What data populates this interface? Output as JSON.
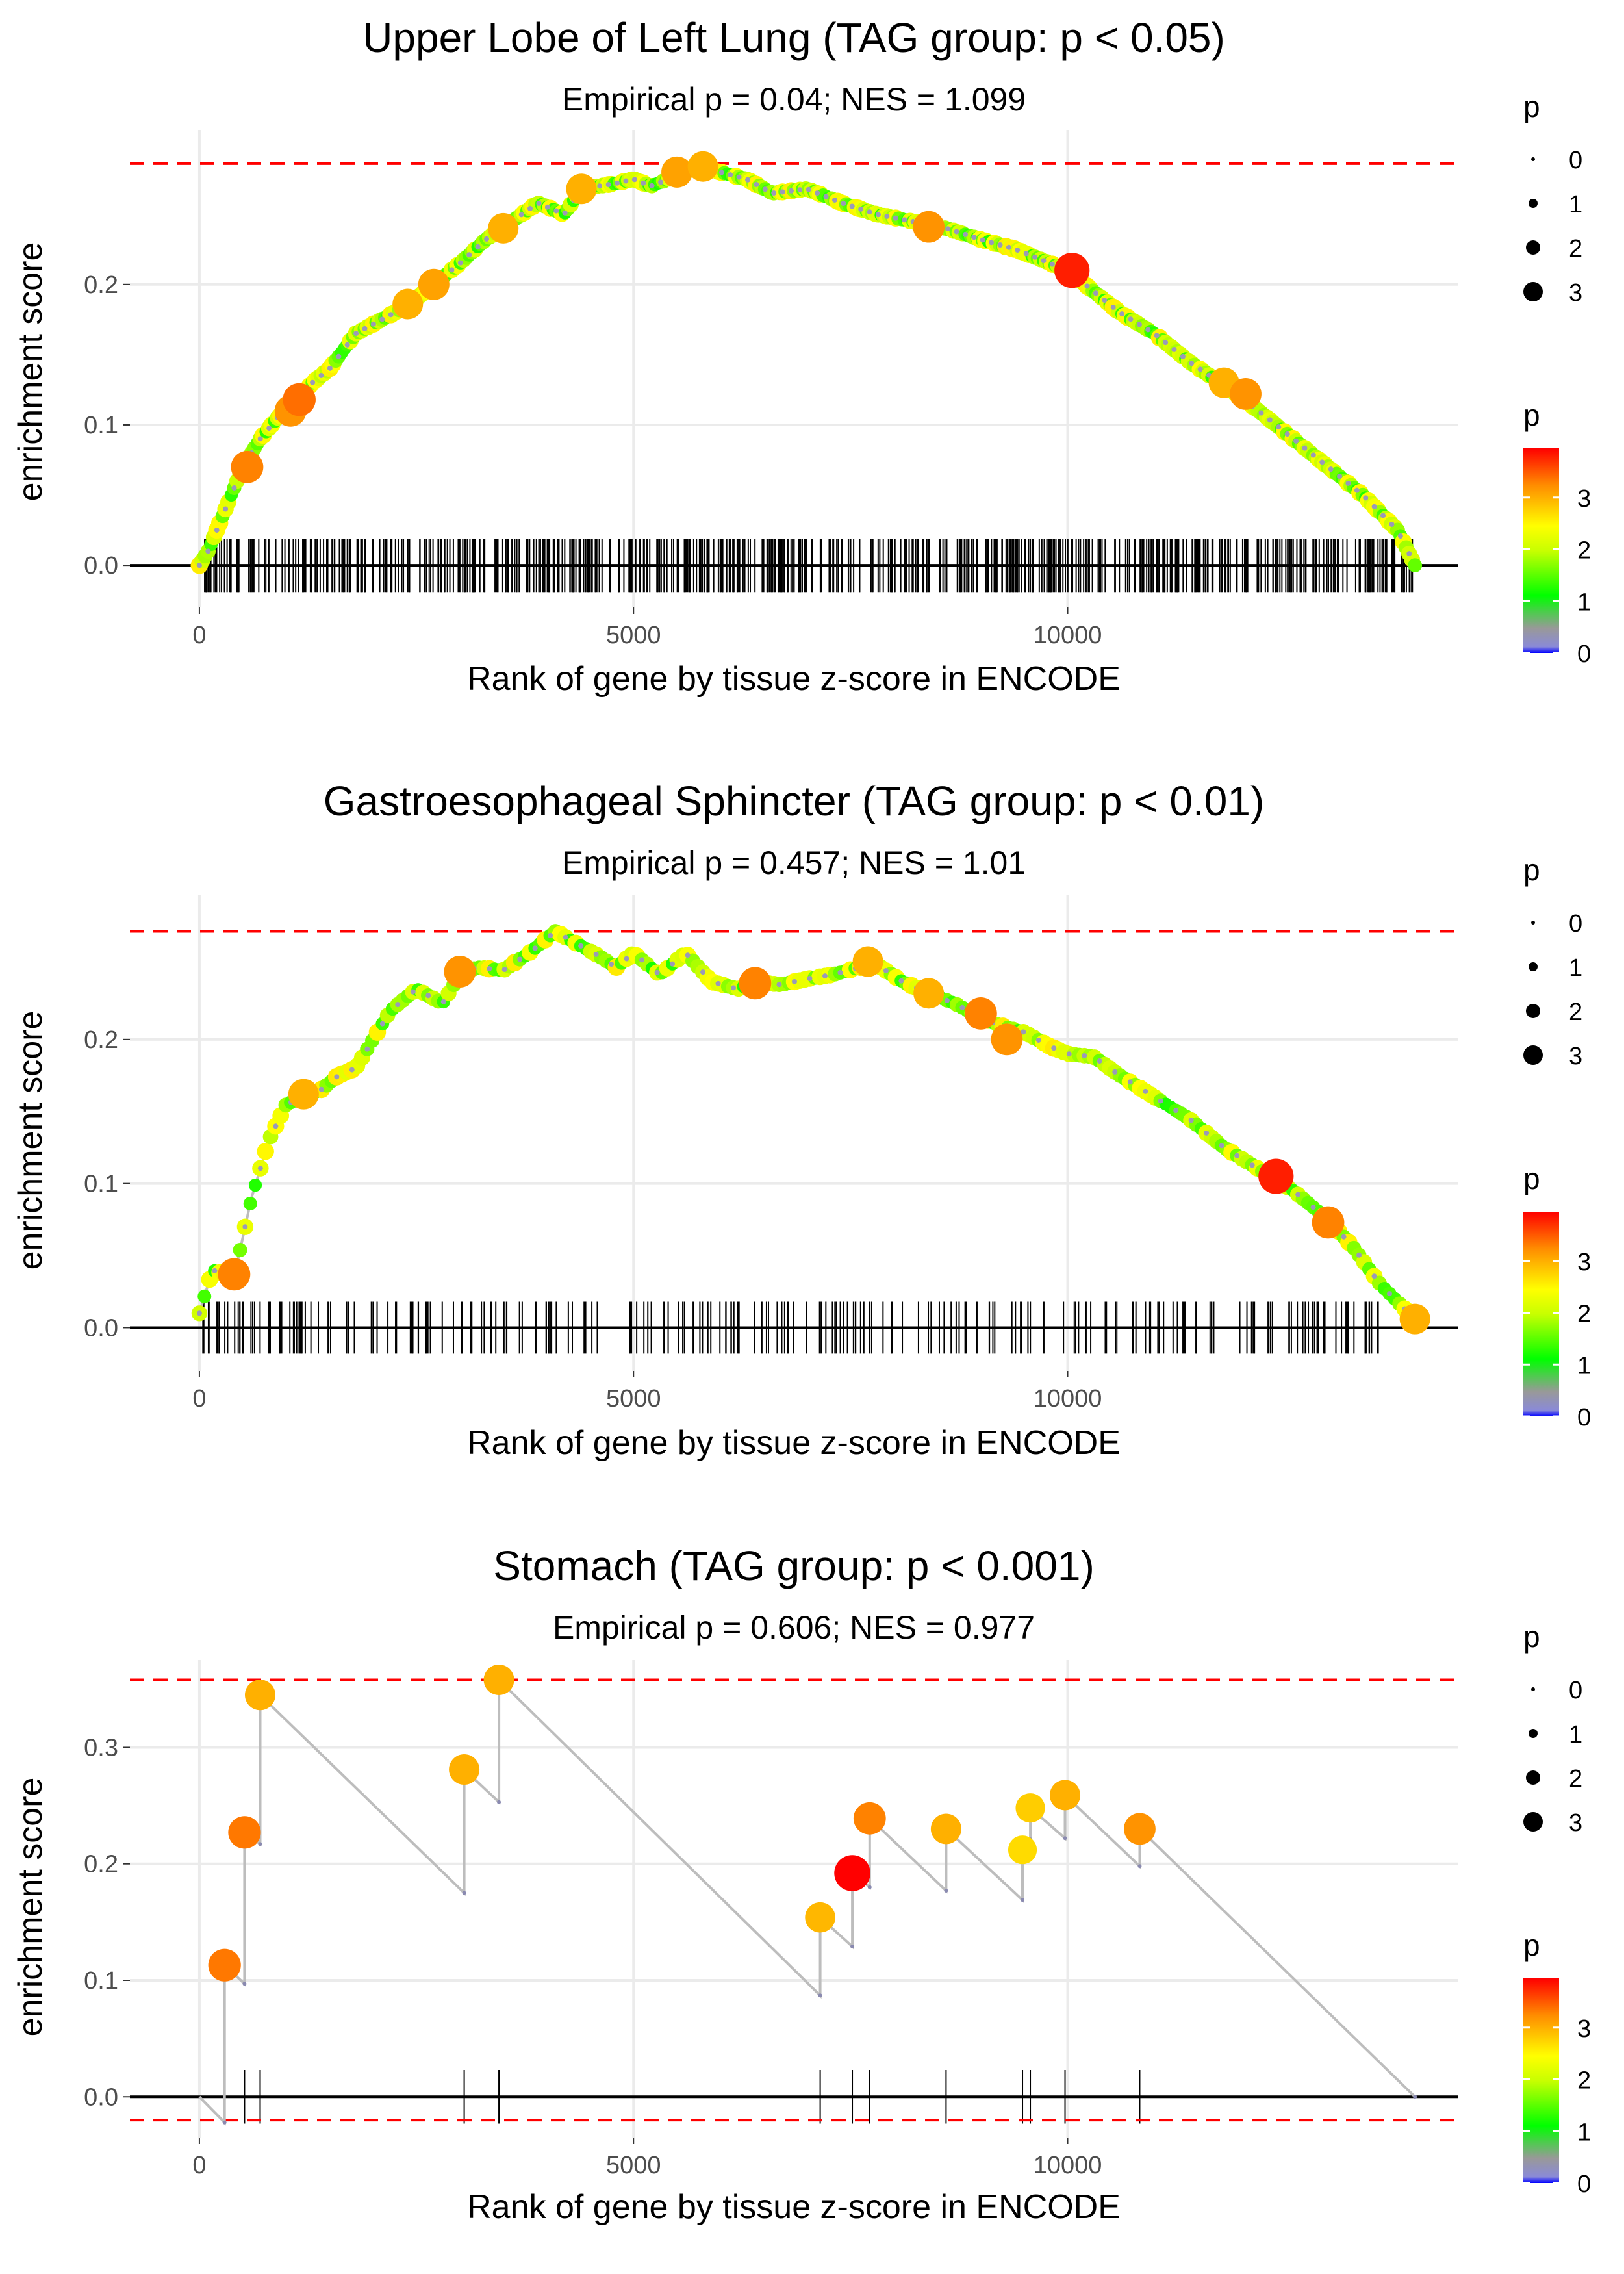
{
  "chart_data": [
    {
      "type": "line",
      "title": "Upper Lobe of Left Lung (TAG group: p < 0.05)",
      "subtitle": "Empirical p = 0.04; NES = 1.099",
      "xlabel": "Rank of gene by tissue z-score in ENCODE",
      "ylabel": "enrichment score",
      "xlim": [
        -800,
        14500
      ],
      "ylim": [
        -0.03,
        0.31
      ],
      "x_ticks": [
        0,
        5000,
        10000
      ],
      "x_tick_labels": [
        "0",
        "5000",
        "10000"
      ],
      "y_ticks": [
        0,
        0.1,
        0.2
      ],
      "y_tick_labels": [
        "0.0",
        "0.1",
        "0.2"
      ],
      "max_es_line": 0.286,
      "min_es_line": null,
      "hit_ticks_y_top": 0.019,
      "n_hits": 620,
      "curve": {
        "x": [
          0,
          100,
          300,
          500,
          700,
          900,
          1100,
          1300,
          1500,
          1800,
          2100,
          2400,
          2700,
          3000,
          3300,
          3600,
          3900,
          4200,
          4400,
          4600,
          4800,
          5000,
          5200,
          5400,
          5600,
          5800,
          6000,
          6300,
          6600,
          7000,
          7400,
          7800,
          8200,
          8600,
          9000,
          9400,
          9800,
          10000,
          10300,
          10600,
          11000,
          11400,
          11800,
          12200,
          12600,
          13000,
          13400,
          13800,
          14000
        ],
        "y": [
          0.0,
          0.01,
          0.04,
          0.07,
          0.09,
          0.105,
          0.115,
          0.13,
          0.14,
          0.165,
          0.175,
          0.185,
          0.2,
          0.215,
          0.232,
          0.245,
          0.258,
          0.25,
          0.268,
          0.27,
          0.272,
          0.275,
          0.27,
          0.275,
          0.282,
          0.282,
          0.28,
          0.275,
          0.265,
          0.268,
          0.258,
          0.25,
          0.245,
          0.24,
          0.232,
          0.225,
          0.215,
          0.21,
          0.195,
          0.18,
          0.165,
          0.145,
          0.128,
          0.11,
          0.09,
          0.07,
          0.05,
          0.025,
          0.0
        ]
      },
      "highlight_points": {
        "x": [
          550,
          1050,
          1150,
          2400,
          2700,
          3500,
          4400,
          5500,
          5800,
          8400,
          10050,
          11800,
          12050
        ],
        "y": [
          0.07,
          0.11,
          0.118,
          0.186,
          0.2,
          0.24,
          0.268,
          0.28,
          0.284,
          0.241,
          0.21,
          0.13,
          0.122
        ],
        "p": [
          3.3,
          3.2,
          3.4,
          3.0,
          3.1,
          3.0,
          3.0,
          3.1,
          3.0,
          3.2,
          3.8,
          3.0,
          3.2
        ]
      },
      "size_legend": {
        "title": "p",
        "labels": [
          "0",
          "1",
          "2",
          "3"
        ]
      },
      "color_legend": {
        "title": "p",
        "labels": [
          "0",
          "1",
          "2",
          "3"
        ],
        "max": 3.95
      }
    },
    {
      "type": "line",
      "title": "Gastroesophageal Sphincter (TAG group: p < 0.01)",
      "subtitle": "Empirical p = 0.457; NES = 1.01",
      "xlabel": "Rank of gene by tissue z-score in ENCODE",
      "ylabel": "enrichment score",
      "xlim": [
        -800,
        14500
      ],
      "ylim": [
        -0.03,
        0.3
      ],
      "x_ticks": [
        0,
        5000,
        10000
      ],
      "x_tick_labels": [
        "0",
        "5000",
        "10000"
      ],
      "y_ticks": [
        0,
        0.1,
        0.2
      ],
      "y_tick_labels": [
        "0.0",
        "0.1",
        "0.2"
      ],
      "max_es_line": 0.275,
      "min_es_line": null,
      "hit_ticks_y_top": 0.018,
      "n_hits": 240,
      "curve": {
        "x": [
          0,
          150,
          400,
          600,
          800,
          1000,
          1200,
          1400,
          1600,
          1800,
          2000,
          2200,
          2500,
          2800,
          3000,
          3200,
          3500,
          3800,
          4100,
          4300,
          4600,
          4800,
          5000,
          5300,
          5600,
          5900,
          6200,
          6400,
          6700,
          7000,
          7300,
          7600,
          7800,
          8100,
          8400,
          8700,
          9000,
          9200,
          9500,
          9800,
          10000,
          10300,
          10600,
          11000,
          11400,
          11800,
          12200,
          12600,
          13000,
          13300,
          13600,
          14000
        ],
        "y": [
          0.01,
          0.04,
          0.035,
          0.09,
          0.13,
          0.155,
          0.16,
          0.165,
          0.175,
          0.18,
          0.2,
          0.22,
          0.235,
          0.225,
          0.245,
          0.25,
          0.248,
          0.26,
          0.275,
          0.268,
          0.258,
          0.25,
          0.26,
          0.245,
          0.26,
          0.24,
          0.235,
          0.24,
          0.238,
          0.242,
          0.245,
          0.25,
          0.252,
          0.24,
          0.232,
          0.225,
          0.215,
          0.21,
          0.205,
          0.195,
          0.19,
          0.188,
          0.175,
          0.16,
          0.145,
          0.125,
          0.11,
          0.095,
          0.075,
          0.055,
          0.03,
          0.006
        ]
      },
      "highlight_points": {
        "x": [
          400,
          1200,
          3000,
          6400,
          7700,
          8400,
          9000,
          9300,
          12400,
          13000,
          14000
        ],
        "y": [
          0.037,
          0.162,
          0.247,
          0.239,
          0.254,
          0.232,
          0.218,
          0.2,
          0.105,
          0.073,
          0.006
        ],
        "p": [
          3.3,
          3.0,
          3.2,
          3.3,
          3.0,
          3.0,
          3.3,
          3.2,
          3.8,
          3.3,
          3.0
        ]
      },
      "size_legend": {
        "title": "p",
        "labels": [
          "0",
          "1",
          "2",
          "3"
        ]
      },
      "color_legend": {
        "title": "p",
        "labels": [
          "0",
          "1",
          "2",
          "3"
        ],
        "max": 3.95
      }
    },
    {
      "type": "line",
      "title": "Stomach (TAG group: p < 0.001)",
      "subtitle": "Empirical p = 0.606; NES = 0.977",
      "xlabel": "Rank of gene by tissue z-score in ENCODE",
      "ylabel": "enrichment score",
      "xlim": [
        -800,
        14500
      ],
      "ylim": [
        -0.035,
        0.375
      ],
      "x_ticks": [
        0,
        5000,
        10000
      ],
      "x_tick_labels": [
        "0",
        "5000",
        "10000"
      ],
      "y_ticks": [
        0,
        0.1,
        0.2,
        0.3
      ],
      "y_tick_labels": [
        "0.0",
        "0.1",
        "0.2",
        "0.3"
      ],
      "max_es_line": 0.358,
      "min_es_line": -0.02,
      "hit_ticks_y_top": 0.023,
      "curve": {
        "x": [
          0,
          290,
          290,
          520,
          520,
          700,
          700,
          3050,
          3050,
          3450,
          3450,
          7150,
          7150,
          7520,
          7520,
          7720,
          7720,
          8600,
          8600,
          9480,
          9480,
          9570,
          9570,
          9970,
          9970,
          10830,
          10830,
          14000
        ],
        "y": [
          0.0,
          -0.022,
          0.113,
          0.097,
          0.227,
          0.217,
          0.345,
          0.175,
          0.281,
          0.253,
          0.358,
          0.087,
          0.154,
          0.129,
          0.192,
          0.18,
          0.239,
          0.177,
          0.23,
          0.169,
          0.212,
          0.221,
          0.248,
          0.222,
          0.259,
          0.198,
          0.23,
          0.0
        ]
      },
      "highlight_points": {
        "x": [
          290,
          520,
          700,
          3050,
          3450,
          7150,
          7520,
          7720,
          8600,
          9480,
          9570,
          9970,
          10830
        ],
        "y": [
          0.113,
          0.227,
          0.345,
          0.281,
          0.358,
          0.154,
          0.192,
          0.239,
          0.23,
          0.212,
          0.248,
          0.259,
          0.23
        ],
        "p": [
          3.35,
          3.35,
          3.0,
          3.0,
          3.0,
          2.95,
          3.95,
          3.3,
          3.0,
          2.7,
          2.8,
          3.0,
          3.2
        ]
      },
      "hits": [
        290,
        520,
        700,
        3050,
        3450,
        7150,
        7520,
        7720,
        8600,
        9480,
        9570,
        9970,
        10830
      ],
      "size_legend": {
        "title": "p",
        "labels": [
          "0",
          "1",
          "2",
          "3"
        ]
      },
      "color_legend": {
        "title": "p",
        "labels": [
          "0",
          "1",
          "2",
          "3"
        ],
        "max": 3.95
      }
    }
  ]
}
